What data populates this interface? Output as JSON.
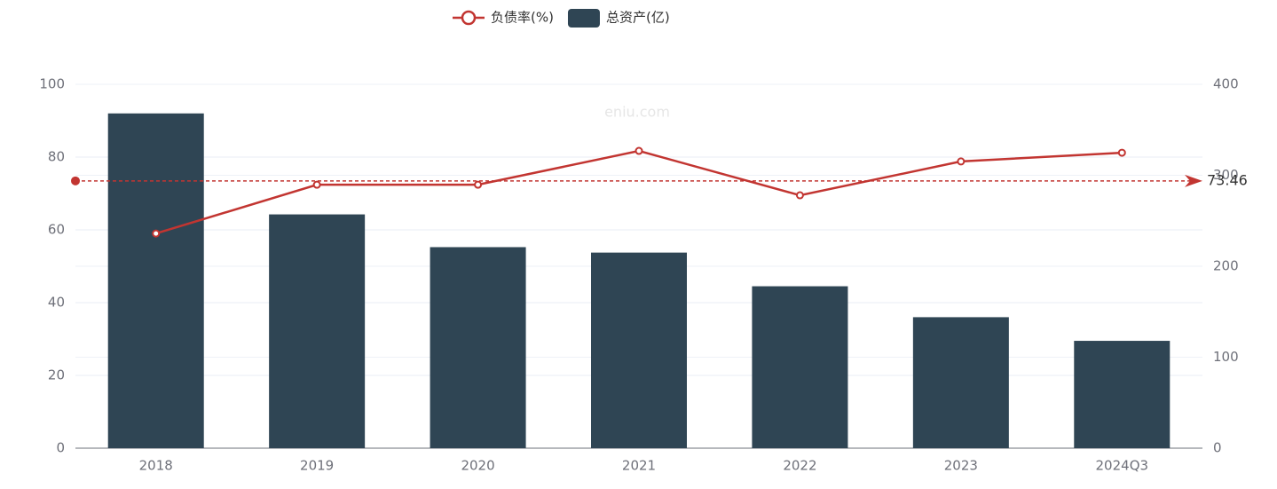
{
  "chart_data": {
    "type": "bar-line",
    "watermark": "eniu.com",
    "categories": [
      "2018",
      "2019",
      "2020",
      "2021",
      "2022",
      "2023",
      "2024Q3"
    ],
    "series": [
      {
        "name": "负债率(%)",
        "type": "line",
        "color": "#c23531",
        "values": [
          59.0,
          72.4,
          72.4,
          81.7,
          69.5,
          78.8,
          81.2
        ]
      },
      {
        "name": "总资产(亿)",
        "type": "bar",
        "axis": "y2",
        "color": "#2f4554",
        "values": [
          368,
          257,
          221,
          215,
          178,
          144,
          118
        ]
      }
    ],
    "mark_line": {
      "value": 73.46,
      "color": "#c23531"
    },
    "ylim": [
      0,
      100
    ],
    "yticks": [
      0,
      20,
      40,
      60,
      80,
      100
    ],
    "y2lim": [
      0,
      400
    ],
    "y2ticks": [
      0,
      100,
      200,
      300,
      400
    ],
    "grid": true
  }
}
